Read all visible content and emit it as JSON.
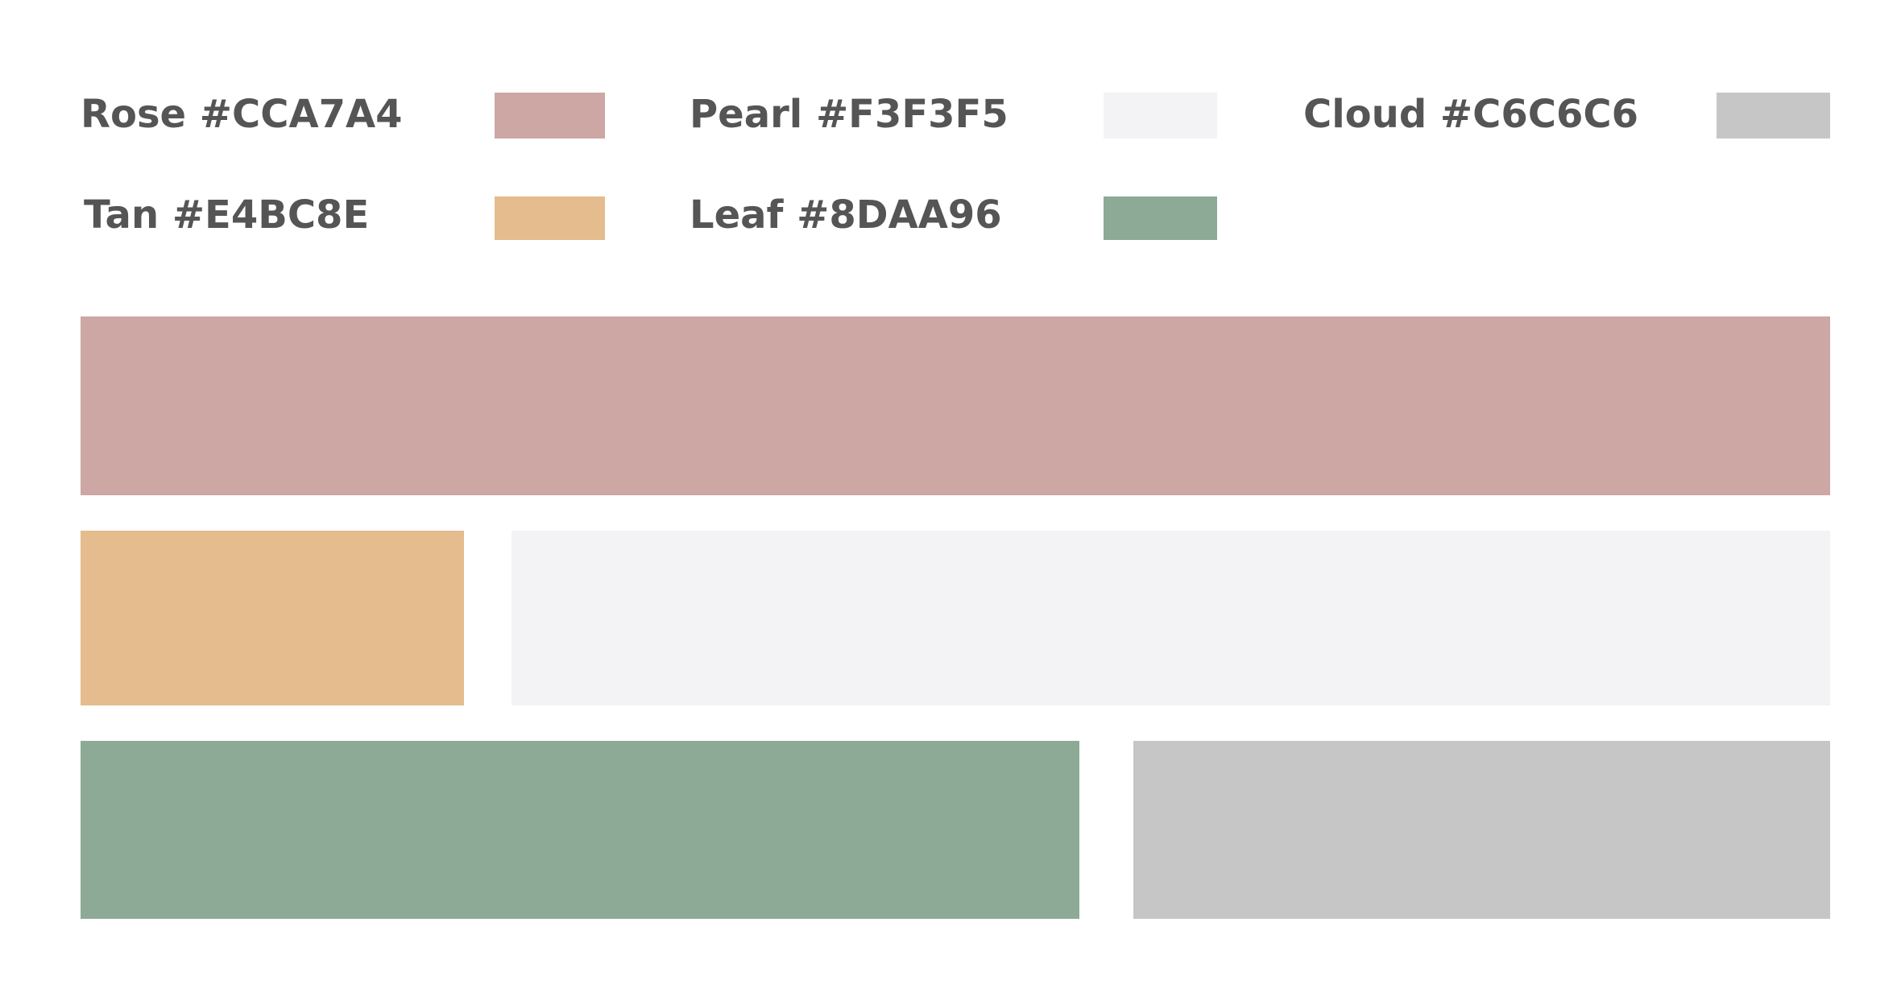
{
  "palette": [
    {
      "name": "Rose",
      "hex": "#CCA7A4",
      "label": "Rose #CCA7A4"
    },
    {
      "name": "Pearl",
      "hex": "#F3F3F5",
      "label": "Pearl #F3F3F5"
    },
    {
      "name": "Cloud",
      "hex": "#C6C6C6",
      "label": "Cloud #C6C6C6"
    },
    {
      "name": "Tan",
      "hex": "#E4BC8E",
      "label": "Tan #E4BC8E"
    },
    {
      "name": "Leaf",
      "hex": "#8DAA96",
      "label": "Leaf #8DAA96"
    }
  ],
  "colors": {
    "text": "#555555",
    "background": "#FFFFFF"
  }
}
